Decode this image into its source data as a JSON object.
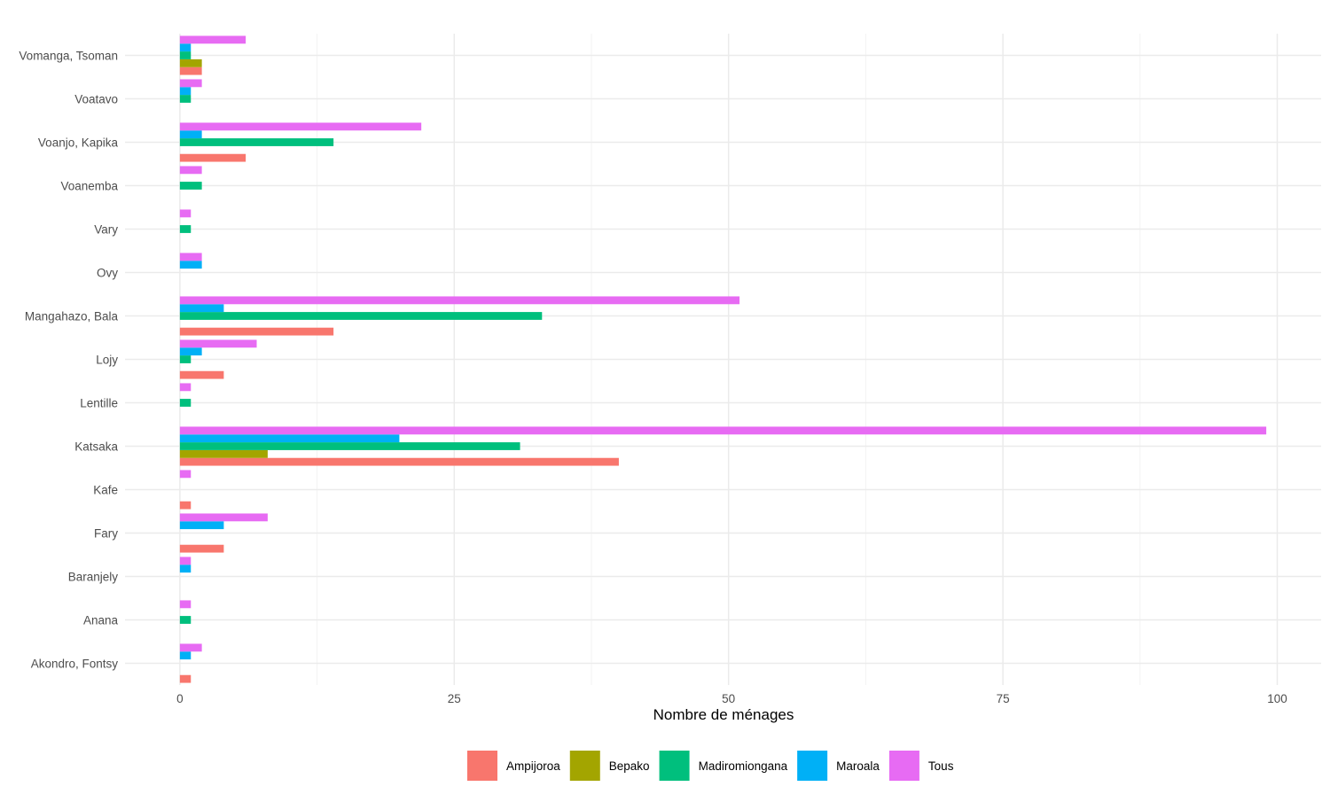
{
  "chart_data": {
    "type": "bar",
    "orientation": "horizontal",
    "title": "",
    "xlabel": "Nombre de ménages",
    "ylabel": "",
    "xlim": [
      -5,
      104
    ],
    "xticks": [
      0,
      25,
      50,
      75,
      100
    ],
    "grid": true,
    "legend_position": "bottom",
    "categories": [
      "Akondro, Fontsy",
      "Anana",
      "Baranjely",
      "Fary",
      "Kafe",
      "Katsaka",
      "Lentille",
      "Lojy",
      "Mangahazo, Bala",
      "Ovy",
      "Vary",
      "Voanemba",
      "Voanjo, Kapika",
      "Voatavo",
      "Vomanga, Tsoman"
    ],
    "series": [
      {
        "name": "Ampijoroa",
        "color": "#F8766D",
        "values": [
          1,
          null,
          null,
          4,
          1,
          40,
          null,
          4,
          14,
          null,
          null,
          null,
          6,
          null,
          2
        ]
      },
      {
        "name": "Bepako",
        "color": "#A3A500",
        "values": [
          null,
          null,
          null,
          null,
          null,
          8,
          null,
          null,
          null,
          null,
          null,
          null,
          null,
          null,
          2
        ]
      },
      {
        "name": "Madiromiongana",
        "color": "#00BF7D",
        "values": [
          null,
          1,
          null,
          null,
          null,
          31,
          1,
          1,
          33,
          null,
          1,
          2,
          14,
          1,
          1
        ]
      },
      {
        "name": "Maroala",
        "color": "#00B0F6",
        "values": [
          1,
          null,
          1,
          4,
          null,
          20,
          null,
          2,
          4,
          2,
          null,
          null,
          2,
          1,
          1
        ]
      },
      {
        "name": "Tous",
        "color": "#E76BF3",
        "values": [
          2,
          1,
          1,
          8,
          1,
          99,
          1,
          7,
          51,
          2,
          1,
          2,
          22,
          2,
          6
        ]
      }
    ]
  }
}
